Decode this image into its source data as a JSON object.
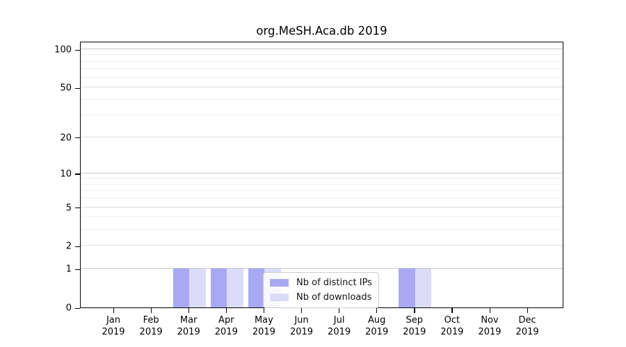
{
  "figure": {
    "title": "org.MeSH.Aca.db 2019"
  },
  "chart_data": {
    "type": "bar",
    "title": "org.MeSH.Aca.db 2019",
    "xlabel": "",
    "ylabel": "",
    "categories": [
      {
        "month": "Jan",
        "year": "2019"
      },
      {
        "month": "Feb",
        "year": "2019"
      },
      {
        "month": "Mar",
        "year": "2019"
      },
      {
        "month": "Apr",
        "year": "2019"
      },
      {
        "month": "May",
        "year": "2019"
      },
      {
        "month": "Jun",
        "year": "2019"
      },
      {
        "month": "Jul",
        "year": "2019"
      },
      {
        "month": "Aug",
        "year": "2019"
      },
      {
        "month": "Sep",
        "year": "2019"
      },
      {
        "month": "Oct",
        "year": "2019"
      },
      {
        "month": "Nov",
        "year": "2019"
      },
      {
        "month": "Dec",
        "year": "2019"
      }
    ],
    "series": [
      {
        "name": "Nb of distinct IPs",
        "color": "#a9a9f3",
        "values": [
          0,
          0,
          1,
          1,
          1,
          0,
          0,
          0,
          1,
          0,
          0,
          0
        ]
      },
      {
        "name": "Nb of downloads",
        "color": "#dcdcf9",
        "values": [
          0,
          0,
          1,
          1,
          1,
          0,
          0,
          0,
          1,
          0,
          0,
          0
        ]
      }
    ],
    "y_scale": "log10(value+1)",
    "y_ticks": [
      0,
      1,
      2,
      5,
      10,
      20,
      50,
      100
    ],
    "y_minor_gridlines": [
      3,
      4,
      6,
      7,
      8,
      9,
      30,
      40,
      60,
      70,
      80,
      90
    ],
    "ylim": [
      0,
      115
    ],
    "grid": "horizontal",
    "legend_position": "inside-bottom-center",
    "colors": {
      "axis": "#000000",
      "gridline_decade": "#c8c8c8",
      "gridline_labeled": "#dedede",
      "gridline_minor": "#efefef",
      "legend_border": "#cccccc"
    }
  }
}
